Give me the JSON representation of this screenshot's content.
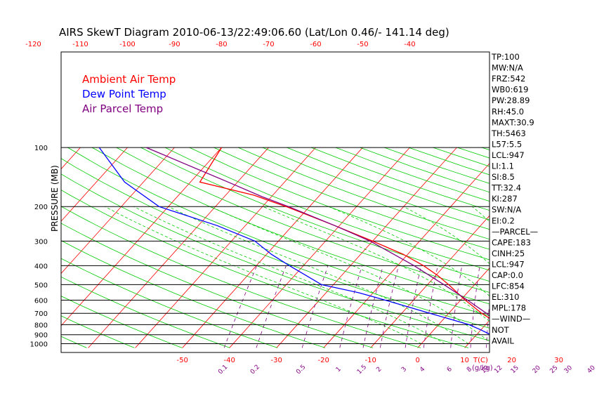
{
  "chart_data": {
    "type": "line",
    "title": "AIRS SkewT Diagram 2010-06-13/22:49:06.60 (Lat/Lon 0.46/- 141.14 deg)",
    "ylabel": "PRESSURE (MB)",
    "y_scale": "log",
    "ylim": [
      1050,
      100
    ],
    "y_ticks": [
      100,
      200,
      300,
      400,
      500,
      600,
      700,
      800,
      900,
      1000
    ],
    "bottom_temp_ticks": [
      "-50",
      "-40",
      "-30",
      "-20",
      "-10",
      "0",
      "10",
      "20",
      "30"
    ],
    "bottom_temp_unit_label": "T(C)",
    "top_temp_ticks": [
      "-120",
      "-110",
      "-100",
      "-90",
      "-80",
      "-70",
      "-60",
      "-50",
      "-40"
    ],
    "mixing_ratio_ticks": [
      "0.1",
      "0.2",
      "0.5",
      "1",
      "1.5",
      "2",
      "3",
      "4",
      "6",
      "8",
      "10",
      "12",
      "15",
      "20",
      "25",
      "30",
      "40"
    ],
    "mixing_ratio_unit_label": "(g/kg)",
    "legend": [
      {
        "name": "Ambient Air Temp",
        "color": "#ff0000"
      },
      {
        "name": "Dew Point Temp",
        "color": "#0000ff"
      },
      {
        "name": "Air Parcel Temp",
        "color": "#800080"
      }
    ],
    "series": [
      {
        "name": "Ambient Air Temp",
        "color": "#ff0000",
        "points": [
          [
            1000,
            25.6
          ],
          [
            975,
            23.0
          ],
          [
            950,
            20.5
          ],
          [
            925,
            19.8
          ],
          [
            900,
            18.5
          ],
          [
            850,
            16.0
          ],
          [
            800,
            13.0
          ],
          [
            700,
            7.0
          ],
          [
            600,
            1.0
          ],
          [
            500,
            -5.5
          ],
          [
            450,
            -9.5
          ],
          [
            400,
            -14.5
          ],
          [
            350,
            -21.0
          ],
          [
            300,
            -30.0
          ],
          [
            250,
            -41.0
          ],
          [
            200,
            -55.0
          ],
          [
            175,
            -64.0
          ],
          [
            150,
            -78.0
          ],
          [
            100,
            -80.0
          ]
        ]
      },
      {
        "name": "Dew Point Temp",
        "color": "#0000ff",
        "points": [
          [
            1000,
            21.0
          ],
          [
            975,
            20.0
          ],
          [
            950,
            18.5
          ],
          [
            900,
            13.0
          ],
          [
            850,
            10.0
          ],
          [
            800,
            6.5
          ],
          [
            700,
            -4.0
          ],
          [
            600,
            -16.0
          ],
          [
            550,
            -23.0
          ],
          [
            500,
            -32.5
          ],
          [
            400,
            -43.0
          ],
          [
            350,
            -49.0
          ],
          [
            300,
            -55.0
          ],
          [
            250,
            -66.0
          ],
          [
            200,
            -82.0
          ],
          [
            150,
            -94.0
          ],
          [
            100,
            -106.0
          ]
        ]
      },
      {
        "name": "Air Parcel Temp",
        "color": "#800080",
        "points": [
          [
            1000,
            25.6
          ],
          [
            947,
            21.0
          ],
          [
            900,
            18.5
          ],
          [
            850,
            16.0
          ],
          [
            800,
            13.5
          ],
          [
            700,
            8.0
          ],
          [
            600,
            1.5
          ],
          [
            500,
            -6.5
          ],
          [
            400,
            -16.5
          ],
          [
            350,
            -23.0
          ],
          [
            300,
            -30.5
          ],
          [
            250,
            -41.0
          ],
          [
            200,
            -54.5
          ],
          [
            178,
            -62.0
          ],
          [
            150,
            -72.0
          ],
          [
            100,
            -96.0
          ]
        ]
      }
    ],
    "indices": [
      "TP:100",
      "MW:N/A",
      "FRZ:542",
      "WB0:619",
      "PW:28.89",
      "RH:45.0",
      "MAXT:30.9",
      "TH:5463",
      "L57:5.5",
      "LCL:947",
      "LI:1.1",
      "SI:8.5",
      "TT:32.4",
      "KI:287",
      "SW:N/A",
      "EI:0.2",
      "—PARCEL—",
      "CAPE:183",
      "CINH:25",
      "LCL:947",
      "CAP:0.0",
      "LFC:854",
      "EL:310",
      "MPL:178",
      "—WIND—",
      "NOT",
      "AVAIL"
    ],
    "grid": true,
    "colors": {
      "isotherm": "#ff0000",
      "dry_adiabat": "#00cc00",
      "moist_adiabat": "#00cc00",
      "mixing_ratio": "#800080",
      "frame": "#000000"
    }
  }
}
